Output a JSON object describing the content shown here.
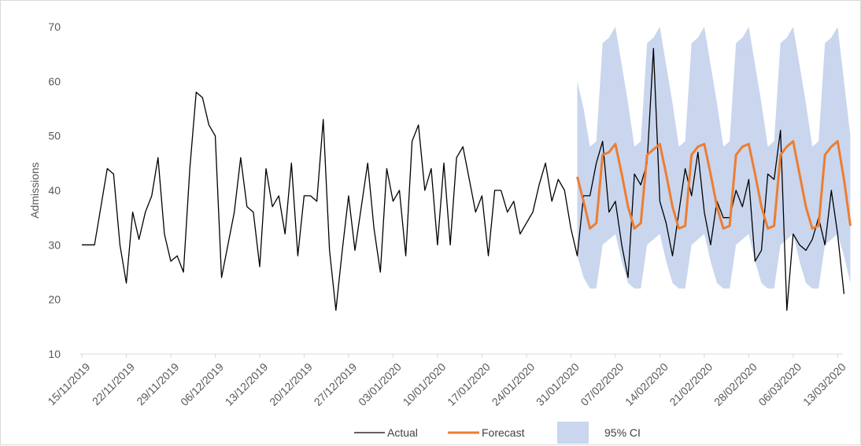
{
  "chart_data": {
    "type": "line",
    "title": "",
    "xlabel": "",
    "ylabel": "Admissions",
    "ylim": [
      10,
      70
    ],
    "yticks": [
      10,
      20,
      30,
      40,
      50,
      60,
      70
    ],
    "grid": false,
    "legend_position": "bottom",
    "x_start_date": "15/11/2019",
    "x_tick_labels": [
      "15/11/2019",
      "22/11/2019",
      "29/11/2019",
      "06/12/2019",
      "13/12/2019",
      "20/12/2019",
      "27/12/2019",
      "03/01/2020",
      "10/01/2020",
      "17/01/2020",
      "24/01/2020",
      "31/01/2020",
      "07/02/2020",
      "14/02/2020",
      "21/02/2020",
      "28/02/2020",
      "06/03/2020",
      "13/03/2020"
    ],
    "colors": {
      "actual": "#000000",
      "forecast": "#ed7d31",
      "ci": "#c9d6ee"
    },
    "series": [
      {
        "name": "Actual",
        "type": "line",
        "color": "#000000",
        "values": [
          30,
          30,
          30,
          37,
          44,
          43,
          30,
          23,
          36,
          31,
          36,
          39,
          46,
          32,
          27,
          28,
          25,
          44,
          58,
          57,
          52,
          50,
          24,
          30,
          36,
          46,
          37,
          36,
          26,
          44,
          37,
          39,
          32,
          45,
          28,
          39,
          39,
          38,
          53,
          29,
          18,
          29,
          39,
          29,
          37,
          45,
          33,
          25,
          44,
          38,
          40,
          28,
          49,
          52,
          40,
          44,
          30,
          45,
          30,
          46,
          48,
          42,
          36,
          39,
          28,
          40,
          40,
          36,
          38,
          32,
          34,
          36,
          41,
          45,
          38,
          42,
          40,
          33,
          28,
          39,
          39,
          45,
          49,
          36,
          38,
          30,
          24,
          43,
          41,
          45,
          66,
          38,
          34,
          28,
          36,
          44,
          39,
          47,
          36,
          30,
          38,
          35,
          35,
          40,
          37,
          42,
          27,
          29,
          43,
          42,
          51,
          18,
          32,
          30,
          29,
          31,
          35,
          30,
          40,
          32,
          21
        ]
      },
      {
        "name": "Forecast",
        "type": "line",
        "color": "#ed7d31",
        "start_index": 78,
        "values": [
          42.5,
          38.0,
          33.0,
          34.0,
          46.5,
          47.0,
          48.5,
          43.0,
          37.0,
          33.0,
          34.0,
          46.5,
          47.5,
          48.5,
          43.0,
          37.0,
          33.0,
          33.5,
          46.5,
          48.0,
          48.5,
          43.0,
          37.0,
          33.0,
          33.5,
          46.5,
          48.0,
          48.5,
          43.0,
          37.0,
          33.0,
          33.5,
          46.5,
          48.0,
          49.0,
          43.0,
          37.0,
          33.0,
          33.5,
          46.5,
          48.0,
          49.0,
          42.0,
          33.5
        ]
      },
      {
        "name": "95% CI",
        "type": "area",
        "color": "#c9d6ee",
        "start_index": 78,
        "upper": [
          60,
          55,
          48,
          49,
          67,
          68,
          70,
          63,
          56,
          48,
          49,
          67,
          68,
          70,
          63,
          56,
          48,
          49,
          67,
          68,
          70,
          63,
          56,
          48,
          49,
          67,
          68,
          70,
          63,
          56,
          48,
          49,
          67,
          68,
          70,
          63,
          56,
          48,
          49,
          67,
          68,
          70,
          60,
          50
        ],
        "lower": [
          28,
          24,
          22,
          22,
          30,
          31,
          32,
          27,
          23,
          22,
          22,
          30,
          31,
          32,
          27,
          23,
          22,
          22,
          30,
          31,
          32,
          27,
          23,
          22,
          22,
          30,
          31,
          32,
          27,
          23,
          22,
          22,
          30,
          31,
          32,
          27,
          23,
          22,
          22,
          30,
          31,
          32,
          28,
          23
        ]
      }
    ]
  }
}
